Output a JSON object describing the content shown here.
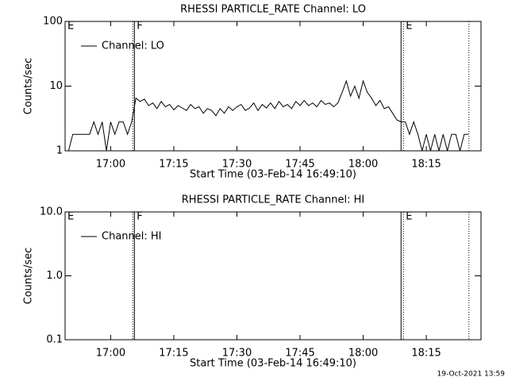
{
  "chart_data": [
    {
      "type": "line",
      "title": "RHESSI PARTICLE_RATE Channel: LO",
      "x_label": "Start Time (03-Feb-14 16:49:10)",
      "y_label": "Counts/sec",
      "log_y": true,
      "ylim": [
        1,
        100
      ],
      "yticks": [
        1,
        10,
        100
      ],
      "xlim": [
        "16:49:10",
        "18:28:00"
      ],
      "xticks": [
        "17:00",
        "17:15",
        "17:30",
        "17:45",
        "18:00",
        "18:15"
      ],
      "legend": "top-left",
      "x": [
        "16:50",
        "16:51",
        "16:52",
        "16:53",
        "16:54",
        "16:55",
        "16:56",
        "16:57",
        "16:58",
        "16:59",
        "17:00",
        "17:01",
        "17:02",
        "17:03",
        "17:04",
        "17:05",
        "17:06",
        "17:07",
        "17:08",
        "17:09",
        "17:10",
        "17:11",
        "17:12",
        "17:13",
        "17:14",
        "17:15",
        "17:16",
        "17:17",
        "17:18",
        "17:19",
        "17:20",
        "17:21",
        "17:22",
        "17:23",
        "17:24",
        "17:25",
        "17:26",
        "17:27",
        "17:28",
        "17:29",
        "17:30",
        "17:31",
        "17:32",
        "17:33",
        "17:34",
        "17:35",
        "17:36",
        "17:37",
        "17:38",
        "17:39",
        "17:40",
        "17:41",
        "17:42",
        "17:43",
        "17:44",
        "17:45",
        "17:46",
        "17:47",
        "17:48",
        "17:49",
        "17:50",
        "17:51",
        "17:52",
        "17:53",
        "17:54",
        "17:55",
        "17:56",
        "17:57",
        "17:58",
        "17:59",
        "18:00",
        "18:01",
        "18:02",
        "18:03",
        "18:04",
        "18:05",
        "18:06",
        "18:07",
        "18:08",
        "18:09",
        "18:10",
        "18:11",
        "18:12",
        "18:13",
        "18:14",
        "18:15",
        "18:16",
        "18:17",
        "18:18",
        "18:19",
        "18:20",
        "18:21",
        "18:22",
        "18:23",
        "18:24",
        "18:25"
      ],
      "series": [
        {
          "name": "Channel: LO",
          "color": "#000000",
          "values": [
            1,
            1.8,
            1.8,
            1.8,
            1.8,
            1.8,
            2.8,
            1.8,
            2.8,
            1,
            2.8,
            1.8,
            2.8,
            2.8,
            1.8,
            2.8,
            6.5,
            5.8,
            6.3,
            5,
            5.5,
            4.5,
            5.8,
            4.8,
            5.2,
            4.3,
            5,
            4.6,
            4.2,
            5.2,
            4.5,
            4.8,
            3.8,
            4.5,
            4.2,
            3.5,
            4.5,
            3.8,
            4.8,
            4.2,
            4.8,
            5.2,
            4.2,
            4.6,
            5.5,
            4.2,
            5.2,
            4.6,
            5.5,
            4.5,
            5.8,
            4.8,
            5.2,
            4.5,
            5.8,
            5,
            6,
            5,
            5.5,
            4.8,
            6,
            5.2,
            5.5,
            4.8,
            5.5,
            8,
            12,
            7,
            10,
            6.5,
            12,
            8,
            6.5,
            5,
            6,
            4.5,
            4.8,
            3.8,
            3,
            2.8,
            2.8,
            1.8,
            2.8,
            1.8,
            1,
            1.8,
            1,
            1.8,
            1,
            1.8,
            1,
            1.8,
            1.8,
            1,
            1.8,
            1.8
          ]
        }
      ],
      "markers": [
        {
          "x": "16:49:10",
          "label": "E",
          "style": "solid"
        },
        {
          "x": "17:05:15",
          "style": "dotted"
        },
        {
          "x": "17:05:38",
          "label": "F",
          "style": "solid"
        },
        {
          "x": "18:09:00",
          "style": "solid"
        },
        {
          "x": "18:09:34",
          "label": "E",
          "style": "dotted"
        },
        {
          "x": "18:25:08",
          "style": "dotted"
        }
      ]
    },
    {
      "type": "line",
      "title": "RHESSI PARTICLE_RATE Channel: HI",
      "x_label": "Start Time (03-Feb-14 16:49:10)",
      "y_label": "Counts/sec",
      "log_y": true,
      "ylim": [
        0.1,
        10
      ],
      "yticks": [
        0.1,
        {
          "value": 1,
          "label": "1.0"
        },
        {
          "value": 10,
          "label": "10.0"
        }
      ],
      "xlim": [
        "16:49:10",
        "18:28:00"
      ],
      "xticks": [
        "17:00",
        "17:15",
        "17:30",
        "17:45",
        "18:00",
        "18:15"
      ],
      "legend": "top-left",
      "x": [],
      "series": [
        {
          "name": "Channel: HI",
          "color": "#000000",
          "values": []
        }
      ],
      "markers": [
        {
          "x": "16:49:10",
          "label": "E",
          "style": "solid"
        },
        {
          "x": "17:05:15",
          "style": "dotted"
        },
        {
          "x": "17:05:38",
          "label": "F",
          "style": "solid"
        },
        {
          "x": "18:09:00",
          "style": "solid"
        },
        {
          "x": "18:09:34",
          "label": "E",
          "style": "dotted"
        },
        {
          "x": "18:25:08",
          "style": "dotted"
        }
      ]
    }
  ],
  "footer": "19-Oct-2021 13:59"
}
